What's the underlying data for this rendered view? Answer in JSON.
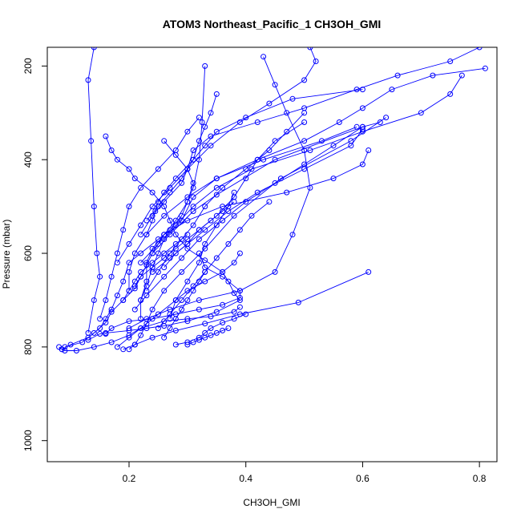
{
  "chart_data": {
    "type": "line",
    "title": "ATOM3 Northeast_Pacific_1 CH3OH_GMI",
    "xlabel": "CH3OH_GMI",
    "ylabel": "Pressure (mbar)",
    "xlim": [
      0.06,
      0.83
    ],
    "ylim": [
      1045,
      160
    ],
    "y_reversed": true,
    "grid": false,
    "legend": "none",
    "color": "#0000ff",
    "xticks": [
      0.2,
      0.4,
      0.6,
      0.8
    ],
    "xtick_labels": [
      "0.2",
      "0.4",
      "0.6",
      "0.8"
    ],
    "yticks": [
      200,
      400,
      600,
      800,
      1000
    ],
    "ytick_labels": [
      "200",
      "400",
      "600",
      "800",
      "1000"
    ],
    "series": [
      {
        "x": [
          0.08,
          0.085,
          0.09,
          0.11,
          0.14,
          0.17,
          0.2,
          0.22,
          0.26,
          0.3,
          0.34,
          0.38,
          0.39
        ],
        "y": [
          800,
          805,
          808,
          808,
          800,
          790,
          775,
          760,
          745,
          740,
          735,
          725,
          715
        ]
      },
      {
        "x": [
          0.13,
          0.15,
          0.16,
          0.2,
          0.23,
          0.26,
          0.3,
          0.35,
          0.39,
          0.38,
          0.37,
          0.36,
          0.33,
          0.3,
          0.28,
          0.27,
          0.26,
          0.24,
          0.21,
          0.2,
          0.18,
          0.17,
          0.16
        ],
        "y": [
          785,
          772,
          770,
          765,
          760,
          755,
          745,
          725,
          700,
          685,
          660,
          640,
          615,
          590,
          560,
          530,
          500,
          470,
          440,
          420,
          400,
          380,
          350
        ]
      },
      {
        "x": [
          0.085,
          0.1,
          0.13,
          0.15,
          0.16,
          0.17,
          0.18,
          0.19,
          0.2,
          0.22,
          0.25,
          0.27,
          0.29,
          0.3,
          0.31,
          0.3,
          0.28,
          0.26
        ],
        "y": [
          805,
          795,
          780,
          760,
          740,
          720,
          690,
          660,
          620,
          600,
          570,
          550,
          520,
          490,
          450,
          420,
          390,
          360
        ]
      },
      {
        "x": [
          0.09,
          0.12,
          0.14,
          0.16,
          0.17,
          0.19,
          0.21,
          0.22,
          0.23,
          0.24,
          0.27,
          0.31,
          0.35,
          0.45,
          0.6,
          0.63
        ],
        "y": [
          800,
          790,
          770,
          748,
          725,
          700,
          675,
          650,
          625,
          600,
          560,
          510,
          475,
          400,
          330,
          320
        ]
      },
      {
        "x": [
          0.13,
          0.14,
          0.15,
          0.145,
          0.14,
          0.135,
          0.13,
          0.14
        ],
        "y": [
          770,
          700,
          650,
          600,
          500,
          360,
          230,
          160
        ]
      },
      {
        "x": [
          0.16,
          0.17,
          0.2,
          0.24,
          0.28,
          0.32,
          0.36,
          0.39,
          0.39,
          0.36,
          0.33,
          0.32
        ],
        "y": [
          772,
          760,
          745,
          740,
          730,
          720,
          710,
          695,
          680,
          650,
          630,
          600
        ]
      },
      {
        "x": [
          0.2,
          0.21,
          0.22,
          0.23,
          0.24,
          0.26,
          0.29,
          0.33,
          0.38,
          0.46,
          0.58,
          0.64
        ],
        "y": [
          805,
          795,
          775,
          750,
          720,
          680,
          640,
          590,
          520,
          440,
          360,
          310
        ]
      },
      {
        "x": [
          0.28,
          0.3,
          0.32,
          0.33,
          0.34,
          0.36,
          0.38,
          0.4
        ],
        "y": [
          795,
          790,
          780,
          770,
          760,
          748,
          740,
          730
        ]
      },
      {
        "x": [
          0.19,
          0.21,
          0.24,
          0.28,
          0.33,
          0.39,
          0.49,
          0.61
        ],
        "y": [
          805,
          795,
          780,
          765,
          750,
          730,
          705,
          640
        ]
      },
      {
        "x": [
          0.22,
          0.22,
          0.23,
          0.23,
          0.24,
          0.26,
          0.3,
          0.36,
          0.47,
          0.55,
          0.6,
          0.61
        ],
        "y": [
          740,
          700,
          660,
          620,
          590,
          560,
          530,
          500,
          470,
          440,
          410,
          380
        ]
      },
      {
        "x": [
          0.22,
          0.23,
          0.24,
          0.25,
          0.26,
          0.29,
          0.31,
          0.35,
          0.43,
          0.53,
          0.59
        ],
        "y": [
          700,
          670,
          630,
          600,
          570,
          530,
          480,
          440,
          400,
          360,
          330
        ]
      },
      {
        "x": [
          0.23,
          0.24,
          0.245,
          0.25,
          0.26,
          0.28,
          0.31,
          0.33,
          0.35,
          0.4,
          0.48,
          0.6
        ],
        "y": [
          560,
          530,
          510,
          490,
          470,
          440,
          400,
          370,
          340,
          310,
          270,
          250
        ]
      },
      {
        "x": [
          0.18,
          0.2,
          0.22,
          0.24,
          0.27,
          0.3,
          0.34,
          0.39,
          0.44,
          0.5,
          0.52,
          0.51
        ],
        "y": [
          620,
          580,
          540,
          500,
          460,
          420,
          370,
          320,
          280,
          230,
          190,
          160
        ]
      },
      {
        "x": [
          0.22,
          0.24,
          0.26,
          0.29,
          0.3,
          0.31,
          0.34,
          0.42,
          0.5,
          0.59,
          0.66,
          0.75,
          0.8
        ],
        "y": [
          560,
          520,
          490,
          450,
          420,
          380,
          350,
          320,
          290,
          250,
          220,
          190,
          160
        ]
      },
      {
        "x": [
          0.23,
          0.25,
          0.27,
          0.29,
          0.31,
          0.32,
          0.33,
          0.34,
          0.35
        ],
        "y": [
          530,
          500,
          470,
          440,
          400,
          360,
          330,
          300,
          260
        ]
      },
      {
        "x": [
          0.24,
          0.26,
          0.28,
          0.3,
          0.31,
          0.32,
          0.325,
          0.33
        ],
        "y": [
          600,
          560,
          530,
          490,
          460,
          400,
          320,
          200
        ]
      },
      {
        "x": [
          0.2,
          0.2,
          0.21,
          0.23,
          0.26,
          0.3,
          0.35,
          0.42,
          0.5,
          0.56,
          0.6,
          0.65,
          0.72,
          0.81
        ],
        "y": [
          680,
          640,
          600,
          560,
          520,
          480,
          440,
          400,
          360,
          320,
          290,
          250,
          220,
          205
        ]
      },
      {
        "x": [
          0.22,
          0.25,
          0.28,
          0.31,
          0.35,
          0.41,
          0.51,
          0.6,
          0.7,
          0.75,
          0.77
        ],
        "y": [
          620,
          580,
          540,
          500,
          460,
          420,
          380,
          340,
          300,
          260,
          220
        ]
      },
      {
        "x": [
          0.15,
          0.16,
          0.17,
          0.18,
          0.19,
          0.2,
          0.22,
          0.25,
          0.28,
          0.3,
          0.32
        ],
        "y": [
          740,
          700,
          650,
          600,
          550,
          500,
          460,
          420,
          380,
          340,
          310
        ]
      },
      {
        "x": [
          0.26,
          0.28,
          0.3,
          0.32,
          0.35,
          0.38,
          0.4,
          0.42,
          0.45,
          0.5
        ],
        "y": [
          630,
          600,
          580,
          550,
          520,
          480,
          440,
          400,
          360,
          320
        ]
      },
      {
        "x": [
          0.24,
          0.27,
          0.3,
          0.33,
          0.37,
          0.42,
          0.5,
          0.58,
          0.6
        ],
        "y": [
          640,
          610,
          580,
          550,
          510,
          470,
          420,
          370,
          335
        ]
      },
      {
        "x": [
          0.2,
          0.23,
          0.27,
          0.32,
          0.39,
          0.45,
          0.48,
          0.51,
          0.5,
          0.47,
          0.45,
          0.43
        ],
        "y": [
          760,
          740,
          720,
          700,
          680,
          640,
          560,
          460,
          380,
          300,
          240,
          180
        ]
      },
      {
        "x": [
          0.27,
          0.28,
          0.3,
          0.32,
          0.33,
          0.35,
          0.37,
          0.38
        ],
        "y": [
          740,
          700,
          660,
          620,
          580,
          540,
          500,
          470
        ]
      },
      {
        "x": [
          0.18,
          0.2,
          0.22,
          0.25,
          0.28,
          0.3,
          0.33,
          0.36,
          0.38,
          0.39
        ],
        "y": [
          800,
          780,
          760,
          730,
          700,
          680,
          660,
          640,
          620,
          600
        ]
      },
      {
        "x": [
          0.23,
          0.25,
          0.27,
          0.29,
          0.31,
          0.33,
          0.36,
          0.4,
          0.44,
          0.47,
          0.5
        ],
        "y": [
          680,
          640,
          600,
          570,
          540,
          500,
          460,
          420,
          380,
          340,
          300
        ]
      },
      {
        "x": [
          0.25,
          0.27,
          0.29,
          0.31,
          0.33,
          0.35,
          0.37,
          0.39,
          0.41,
          0.44
        ],
        "y": [
          760,
          730,
          700,
          670,
          640,
          610,
          580,
          550,
          520,
          490
        ]
      },
      {
        "x": [
          0.21,
          0.23,
          0.26,
          0.29,
          0.32,
          0.36,
          0.4,
          0.45,
          0.5,
          0.55,
          0.6
        ],
        "y": [
          720,
          690,
          650,
          610,
          570,
          530,
          490,
          450,
          410,
          370,
          330
        ]
      },
      {
        "x": [
          0.26,
          0.27,
          0.28,
          0.29,
          0.3,
          0.31,
          0.32,
          0.33
        ],
        "y": [
          780,
          760,
          740,
          720,
          700,
          680,
          660,
          640
        ]
      },
      {
        "x": [
          0.3,
          0.31,
          0.32,
          0.33,
          0.34,
          0.35,
          0.36,
          0.37
        ],
        "y": [
          795,
          790,
          785,
          780,
          775,
          770,
          765,
          760
        ]
      },
      {
        "x": [
          0.21,
          0.22,
          0.24,
          0.26,
          0.28,
          0.3,
          0.32,
          0.34,
          0.36,
          0.38
        ],
        "y": [
          670,
          650,
          630,
          610,
          590,
          570,
          550,
          530,
          510,
          490
        ]
      },
      {
        "x": [
          0.19,
          0.2,
          0.21,
          0.22,
          0.24,
          0.26,
          0.28,
          0.3
        ],
        "y": [
          700,
          680,
          660,
          640,
          620,
          600,
          580,
          560
        ]
      }
    ]
  }
}
